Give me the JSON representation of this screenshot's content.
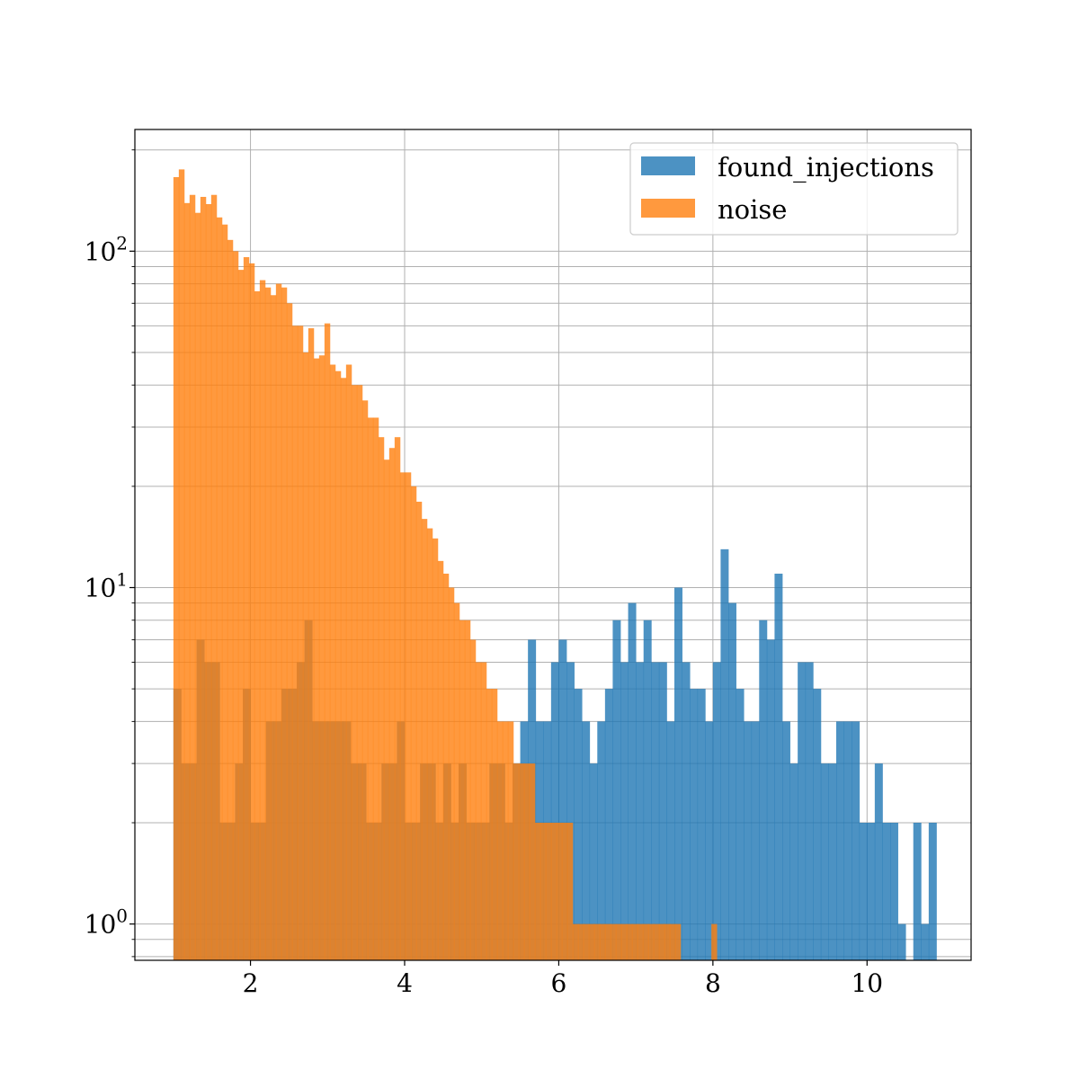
{
  "chart_data": {
    "type": "bar",
    "title": "",
    "xlabel": "",
    "ylabel": "",
    "yscale": "log",
    "xlim": [
      0.5,
      11.35
    ],
    "ylim": [
      0.78,
      230
    ],
    "grid": true,
    "legend": {
      "placement": "top-right"
    },
    "x_ticks": [
      2,
      4,
      6,
      8,
      10
    ],
    "x_tick_labels": [
      "2",
      "4",
      "6",
      "8",
      "10"
    ],
    "y_ticks": [
      1,
      10,
      100
    ],
    "y_tick_labels": [
      {
        "base": "10",
        "exp": "0"
      },
      {
        "base": "10",
        "exp": "1"
      },
      {
        "base": "10",
        "exp": "2"
      }
    ],
    "bins": {
      "start": 1.0,
      "width": 0.07
    },
    "series": [
      {
        "name": "found_injections",
        "color": "#1f77b4",
        "bin_width": 0.1,
        "bins": [
          [
            1.0,
            5
          ],
          [
            1.1,
            3
          ],
          [
            1.2,
            3
          ],
          [
            1.3,
            7
          ],
          [
            1.4,
            6
          ],
          [
            1.5,
            6
          ],
          [
            1.6,
            2
          ],
          [
            1.7,
            2
          ],
          [
            1.8,
            3
          ],
          [
            1.9,
            5
          ],
          [
            2.0,
            2
          ],
          [
            2.1,
            2
          ],
          [
            2.2,
            4
          ],
          [
            2.3,
            4
          ],
          [
            2.4,
            5
          ],
          [
            2.5,
            5
          ],
          [
            2.6,
            6
          ],
          [
            2.7,
            8
          ],
          [
            2.8,
            4
          ],
          [
            2.9,
            4
          ],
          [
            3.0,
            4
          ],
          [
            3.1,
            4
          ],
          [
            3.2,
            4
          ],
          [
            3.3,
            3
          ],
          [
            3.4,
            3
          ],
          [
            3.5,
            2
          ],
          [
            3.6,
            2
          ],
          [
            3.7,
            3
          ],
          [
            3.8,
            3
          ],
          [
            3.9,
            4
          ],
          [
            4.0,
            2
          ],
          [
            4.1,
            2
          ],
          [
            4.2,
            3
          ],
          [
            4.3,
            3
          ],
          [
            4.4,
            2
          ],
          [
            4.5,
            3
          ],
          [
            4.6,
            2
          ],
          [
            4.7,
            3
          ],
          [
            4.8,
            2
          ],
          [
            4.9,
            2
          ],
          [
            5.0,
            2
          ],
          [
            5.1,
            3
          ],
          [
            5.2,
            3
          ],
          [
            5.3,
            2
          ],
          [
            5.4,
            3
          ],
          [
            5.5,
            4
          ],
          [
            5.6,
            7
          ],
          [
            5.7,
            4
          ],
          [
            5.8,
            4
          ],
          [
            5.9,
            6
          ],
          [
            6.0,
            7
          ],
          [
            6.1,
            6
          ],
          [
            6.2,
            5
          ],
          [
            6.3,
            4
          ],
          [
            6.4,
            3
          ],
          [
            6.5,
            4
          ],
          [
            6.6,
            5
          ],
          [
            6.7,
            8
          ],
          [
            6.8,
            6
          ],
          [
            6.9,
            9
          ],
          [
            7.0,
            6
          ],
          [
            7.1,
            8
          ],
          [
            7.2,
            6
          ],
          [
            7.3,
            6
          ],
          [
            7.4,
            4
          ],
          [
            7.5,
            10
          ],
          [
            7.6,
            6
          ],
          [
            7.7,
            5
          ],
          [
            7.8,
            5
          ],
          [
            7.9,
            4
          ],
          [
            8.0,
            6
          ],
          [
            8.1,
            13
          ],
          [
            8.2,
            9
          ],
          [
            8.3,
            5
          ],
          [
            8.4,
            4
          ],
          [
            8.5,
            4
          ],
          [
            8.6,
            8
          ],
          [
            8.7,
            7
          ],
          [
            8.8,
            11
          ],
          [
            8.9,
            4
          ],
          [
            9.0,
            3
          ],
          [
            9.1,
            6
          ],
          [
            9.2,
            6
          ],
          [
            9.3,
            5
          ],
          [
            9.4,
            3
          ],
          [
            9.5,
            3
          ],
          [
            9.6,
            4
          ],
          [
            9.7,
            4
          ],
          [
            9.8,
            4
          ],
          [
            9.9,
            2
          ],
          [
            10.0,
            2
          ],
          [
            10.1,
            3
          ],
          [
            10.2,
            2
          ],
          [
            10.3,
            2
          ],
          [
            10.4,
            1
          ],
          [
            10.6,
            2
          ],
          [
            10.7,
            1
          ],
          [
            10.8,
            2
          ]
        ]
      },
      {
        "name": "noise",
        "color": "#ff7f0e",
        "bin_width": 0.07,
        "bins": [
          [
            1.0,
            166
          ],
          [
            1.07,
            175
          ],
          [
            1.14,
            139
          ],
          [
            1.21,
            147
          ],
          [
            1.28,
            130
          ],
          [
            1.35,
            145
          ],
          [
            1.42,
            138
          ],
          [
            1.49,
            147
          ],
          [
            1.56,
            126
          ],
          [
            1.63,
            120
          ],
          [
            1.7,
            108
          ],
          [
            1.77,
            100
          ],
          [
            1.84,
            88
          ],
          [
            1.91,
            96
          ],
          [
            1.98,
            92
          ],
          [
            2.05,
            76
          ],
          [
            2.12,
            82
          ],
          [
            2.19,
            78
          ],
          [
            2.26,
            74
          ],
          [
            2.33,
            80
          ],
          [
            2.4,
            78
          ],
          [
            2.47,
            70
          ],
          [
            2.54,
            60
          ],
          [
            2.61,
            60
          ],
          [
            2.68,
            50
          ],
          [
            2.75,
            59
          ],
          [
            2.82,
            48
          ],
          [
            2.89,
            49
          ],
          [
            2.96,
            61
          ],
          [
            3.03,
            46
          ],
          [
            3.1,
            44
          ],
          [
            3.17,
            42
          ],
          [
            3.24,
            46
          ],
          [
            3.31,
            40
          ],
          [
            3.38,
            40
          ],
          [
            3.45,
            36
          ],
          [
            3.52,
            32
          ],
          [
            3.59,
            32
          ],
          [
            3.66,
            28
          ],
          [
            3.73,
            24
          ],
          [
            3.8,
            26
          ],
          [
            3.87,
            28
          ],
          [
            3.94,
            22
          ],
          [
            4.01,
            22
          ],
          [
            4.08,
            20
          ],
          [
            4.15,
            18
          ],
          [
            4.22,
            16
          ],
          [
            4.29,
            15
          ],
          [
            4.36,
            14
          ],
          [
            4.43,
            12
          ],
          [
            4.5,
            11
          ],
          [
            4.57,
            10
          ],
          [
            4.64,
            9
          ],
          [
            4.71,
            8
          ],
          [
            4.78,
            8
          ],
          [
            4.85,
            7
          ],
          [
            4.92,
            6
          ],
          [
            4.99,
            6
          ],
          [
            5.06,
            5
          ],
          [
            5.13,
            5
          ],
          [
            5.2,
            4
          ],
          [
            5.27,
            4
          ],
          [
            5.34,
            4
          ],
          [
            5.41,
            3
          ],
          [
            5.48,
            3
          ],
          [
            5.55,
            3
          ],
          [
            5.62,
            3
          ],
          [
            5.69,
            2
          ],
          [
            5.76,
            2
          ],
          [
            5.83,
            2
          ],
          [
            5.9,
            2
          ],
          [
            5.97,
            2
          ],
          [
            6.04,
            2
          ],
          [
            6.11,
            2
          ],
          [
            6.18,
            1
          ],
          [
            6.25,
            1
          ],
          [
            6.32,
            1
          ],
          [
            6.39,
            1
          ],
          [
            6.46,
            1
          ],
          [
            6.53,
            1
          ],
          [
            6.6,
            1
          ],
          [
            6.67,
            1
          ],
          [
            6.74,
            1
          ],
          [
            6.81,
            1
          ],
          [
            6.88,
            1
          ],
          [
            6.95,
            1
          ],
          [
            7.02,
            1
          ],
          [
            7.09,
            1
          ],
          [
            7.16,
            1
          ],
          [
            7.23,
            1
          ],
          [
            7.3,
            1
          ],
          [
            7.37,
            1
          ],
          [
            7.44,
            1
          ],
          [
            7.51,
            1
          ],
          [
            7.98,
            1
          ]
        ]
      }
    ]
  }
}
